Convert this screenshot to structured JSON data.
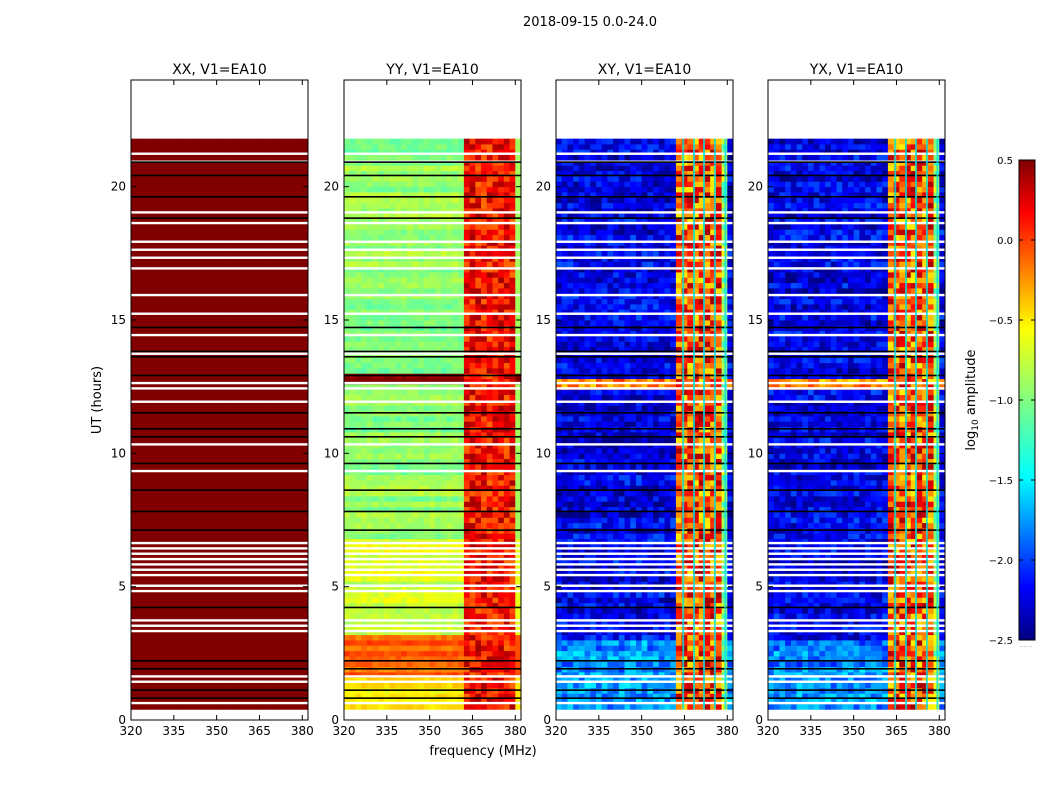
{
  "suptitle": "2018-09-15 0.0-24.0",
  "xlabel": "frequency (MHz)",
  "ylabel": "UT (hours)",
  "colorbar": {
    "label": "log10 amplitude",
    "label_base": "log",
    "label_sub": "10",
    "label_rest": " amplitude",
    "range": [
      -2.5,
      0.5
    ],
    "ticks": [
      0.5,
      0.0,
      -0.5,
      -1.0,
      -1.5,
      -2.0,
      -2.5
    ],
    "tick_labels": [
      "0.5",
      "0.0",
      "−0.5",
      "−1.0",
      "−1.5",
      "−2.0",
      "−2.5"
    ],
    "footer": "......"
  },
  "chart_data": [
    {
      "type": "heatmap",
      "title": "XX, V1=EA10",
      "pol": "XX",
      "xlim": [
        320,
        382
      ],
      "ylim": [
        0,
        24
      ],
      "xticks": [
        320,
        335,
        350,
        365,
        380
      ],
      "yticks": [
        0,
        5,
        10,
        15,
        20
      ],
      "data_extent_hours": [
        0.4,
        21.8
      ]
    },
    {
      "type": "heatmap",
      "title": "YY, V1=EA10",
      "pol": "YY",
      "xlim": [
        320,
        382
      ],
      "ylim": [
        0,
        24
      ],
      "xticks": [
        320,
        335,
        350,
        365,
        380
      ],
      "yticks": [
        0,
        5,
        10,
        15,
        20
      ],
      "data_extent_hours": [
        0.4,
        21.8
      ]
    },
    {
      "type": "heatmap",
      "title": "XY, V1=EA10",
      "pol": "XY",
      "xlim": [
        320,
        382
      ],
      "ylim": [
        0,
        24
      ],
      "xticks": [
        320,
        335,
        350,
        365,
        380
      ],
      "yticks": [
        0,
        5,
        10,
        15,
        20
      ],
      "data_extent_hours": [
        0.4,
        21.8
      ]
    },
    {
      "type": "heatmap",
      "title": "YX, V1=EA10",
      "pol": "YX",
      "xlim": [
        320,
        382
      ],
      "ylim": [
        0,
        24
      ],
      "xticks": [
        320,
        335,
        350,
        365,
        380
      ],
      "yticks": [
        0,
        5,
        10,
        15,
        20
      ],
      "data_extent_hours": [
        0.4,
        21.8
      ]
    }
  ],
  "flagged_white_hours": [
    0.6,
    1.4,
    1.6,
    3.3,
    3.5,
    3.7,
    4.8,
    5.0,
    5.4,
    5.6,
    5.8,
    6.0,
    6.2,
    6.4,
    6.6,
    9.3,
    10.3,
    11.9,
    12.4,
    12.6,
    13.7,
    14.4,
    15.2,
    15.9,
    16.9,
    17.3,
    17.6,
    17.9,
    18.6,
    19.0,
    20.9,
    21.2
  ],
  "gap_black_hours": [
    0.8,
    1.1,
    1.9,
    2.2,
    4.2,
    7.1,
    7.8,
    8.6,
    9.6,
    10.6,
    10.9,
    11.5,
    12.9,
    13.6,
    13.8,
    14.7,
    18.8,
    19.6,
    20.4,
    20.9
  ]
}
